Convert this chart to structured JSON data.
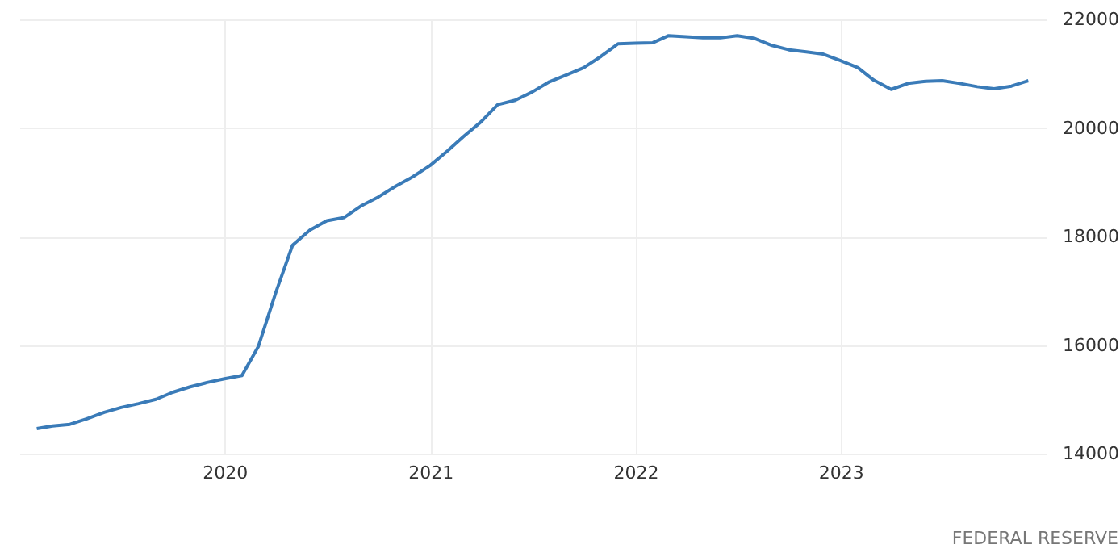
{
  "chart_data": {
    "type": "line",
    "x": [
      "2019-02",
      "2019-03",
      "2019-04",
      "2019-05",
      "2019-06",
      "2019-07",
      "2019-08",
      "2019-09",
      "2019-10",
      "2019-11",
      "2019-12",
      "2020-01",
      "2020-02",
      "2020-03",
      "2020-04",
      "2020-05",
      "2020-06",
      "2020-07",
      "2020-08",
      "2020-09",
      "2020-10",
      "2020-11",
      "2020-12",
      "2021-01",
      "2021-02",
      "2021-03",
      "2021-04",
      "2021-05",
      "2021-06",
      "2021-07",
      "2021-08",
      "2021-09",
      "2021-10",
      "2021-11",
      "2021-12",
      "2022-01",
      "2022-02",
      "2022-03",
      "2022-04",
      "2022-05",
      "2022-06",
      "2022-07",
      "2022-08",
      "2022-09",
      "2022-10",
      "2022-11",
      "2022-12",
      "2023-01",
      "2023-02",
      "2023-03",
      "2023-04",
      "2023-05",
      "2023-06",
      "2023-07",
      "2023-08",
      "2023-09",
      "2023-10",
      "2023-11",
      "2023-12"
    ],
    "series": [
      {
        "color": "#3a7bb8",
        "values": [
          14460,
          14510,
          14540,
          14640,
          14760,
          14850,
          14920,
          15000,
          15130,
          15230,
          15310,
          15380,
          15440,
          15970,
          16960,
          17840,
          18120,
          18290,
          18350,
          18570,
          18730,
          18930,
          19100,
          19310,
          19580,
          19840,
          20110,
          20430,
          20510,
          20660,
          20850,
          20980,
          21110,
          21320,
          21550,
          21560,
          21570,
          21700,
          21680,
          21660,
          21660,
          21700,
          21650,
          21520,
          21440,
          21400,
          21360,
          21240,
          21110,
          20880,
          20710,
          20820,
          20860,
          20870,
          20820,
          20760,
          20720,
          20770,
          20870
        ]
      }
    ],
    "xlim": [
      "2019-01",
      "2024-01"
    ],
    "xticks": [
      "2020",
      "2021",
      "2022",
      "2023"
    ],
    "ylim": [
      14000,
      22000
    ],
    "yticks": [
      14000,
      16000,
      18000,
      20000,
      22000
    ],
    "grid": true,
    "annotations": [
      "FEDERAL RESERVE"
    ]
  }
}
